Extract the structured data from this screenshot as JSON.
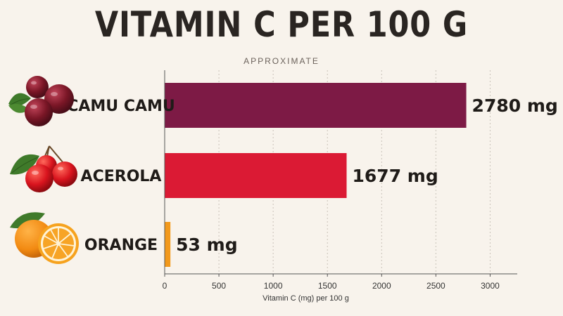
{
  "chart_data": {
    "type": "bar",
    "orientation": "horizontal",
    "title": "VITAMIN C PER 100 G",
    "subtitle": "APPROXIMATE",
    "categories": [
      "CAMU CAMU",
      "ACEROLA",
      "ORANGE"
    ],
    "values": [
      2780,
      1677,
      53
    ],
    "value_labels": [
      "2780 mg",
      "1677 mg",
      "53 mg"
    ],
    "colors": [
      "#7d1a45",
      "#db1a34",
      "#f2991c"
    ],
    "icons": [
      "camu-camu-fruit-icon",
      "acerola-cherry-icon",
      "orange-slice-icon"
    ],
    "xlabel": "Vitamin C (mg) per 100 g",
    "ylabel": "",
    "xlim": [
      0,
      3250
    ],
    "xticks": [
      0,
      500,
      1000,
      1500,
      2000,
      2500,
      3000
    ],
    "grid": true
  }
}
